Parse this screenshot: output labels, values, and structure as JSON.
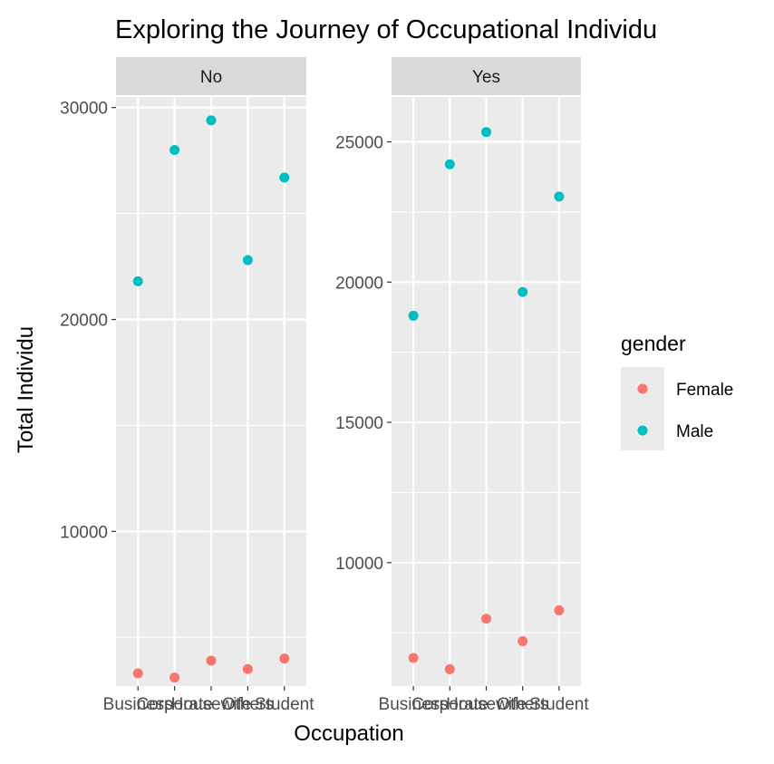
{
  "chart_data": {
    "type": "scatter",
    "title": "Exploring the Journey of Occupational Individu",
    "xlabel": "Occupation",
    "ylabel": "Total Individu",
    "categories": [
      "Business",
      "Corporate",
      "Housewife",
      "Others",
      "Student"
    ],
    "legend": {
      "title": "gender",
      "position": "right",
      "entries": [
        {
          "name": "Female",
          "color": "#F8766D"
        },
        {
          "name": "Male",
          "color": "#00BFC4"
        }
      ]
    },
    "grid": true,
    "panels": [
      {
        "label": "No",
        "ylim": [
          2700,
          30500
        ],
        "yticks": [
          10000,
          20000,
          30000
        ],
        "series": [
          {
            "name": "Female",
            "color": "#F8766D",
            "values": [
              3300,
              3100,
              3900,
              3500,
              4000
            ]
          },
          {
            "name": "Male",
            "color": "#00BFC4",
            "values": [
              21800,
              28000,
              29400,
              22800,
              26700
            ]
          }
        ]
      },
      {
        "label": "Yes",
        "ylim": [
          5600,
          26600
        ],
        "yticks": [
          10000,
          15000,
          20000,
          25000
        ],
        "series": [
          {
            "name": "Female",
            "color": "#F8766D",
            "values": [
              6600,
              6200,
              8000,
              7200,
              8300
            ]
          },
          {
            "name": "Male",
            "color": "#00BFC4",
            "values": [
              18800,
              24200,
              25350,
              19650,
              23050
            ]
          }
        ]
      }
    ]
  }
}
